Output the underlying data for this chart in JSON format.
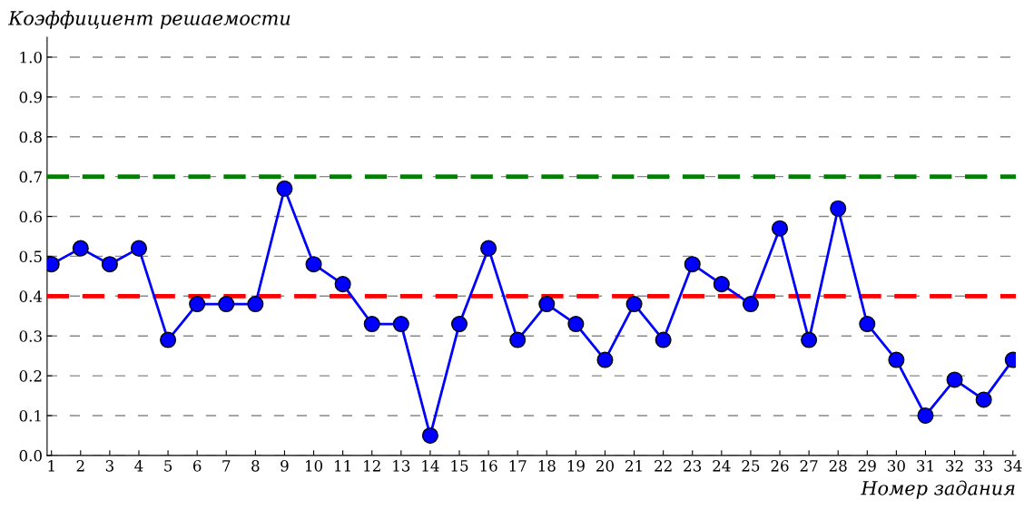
{
  "chart_data": {
    "type": "line",
    "xlabel": "Номер задания",
    "ylabel": "Коэффициент решаемости",
    "x": [
      1,
      2,
      3,
      4,
      5,
      6,
      7,
      8,
      9,
      10,
      11,
      12,
      13,
      14,
      15,
      16,
      17,
      18,
      19,
      20,
      21,
      22,
      23,
      24,
      25,
      26,
      27,
      28,
      29,
      30,
      31,
      32,
      33,
      34
    ],
    "series": [
      {
        "color": "#0000ff",
        "values": [
          0.48,
          0.52,
          0.48,
          0.52,
          0.29,
          0.38,
          0.38,
          0.38,
          0.67,
          0.48,
          0.43,
          0.33,
          0.33,
          0.05,
          0.33,
          0.52,
          0.29,
          0.38,
          0.33,
          0.24,
          0.38,
          0.29,
          0.48,
          0.43,
          0.38,
          0.57,
          0.29,
          0.62,
          0.33,
          0.24,
          0.1,
          0.19,
          0.14,
          0.24
        ]
      }
    ],
    "marker": "circle",
    "line_style": "solid",
    "xlim": [
      0.85,
      34.1
    ],
    "xticks": [
      1,
      2,
      3,
      4,
      5,
      6,
      7,
      8,
      9,
      10,
      11,
      12,
      13,
      14,
      15,
      16,
      17,
      18,
      19,
      20,
      21,
      22,
      23,
      24,
      25,
      26,
      27,
      28,
      29,
      30,
      31,
      32,
      33,
      34
    ],
    "ylim": [
      0,
      1.05
    ],
    "yticks": [
      {
        "value": 0,
        "label": "0.0"
      },
      {
        "value": 0.1,
        "label": "0.1"
      },
      {
        "value": 0.2,
        "label": "0.2"
      },
      {
        "value": 0.3,
        "label": "0.3"
      },
      {
        "value": 0.4,
        "label": "0.4"
      },
      {
        "value": 0.5,
        "label": "0.5"
      },
      {
        "value": 0.6,
        "label": "0.6"
      },
      {
        "value": 0.7,
        "label": "0.7"
      },
      {
        "value": 0.8,
        "label": "0.8"
      },
      {
        "value": 0.9,
        "label": "0.9"
      },
      {
        "value": 1.0,
        "label": "1.0"
      }
    ],
    "grid": "y",
    "ref_lines": [
      {
        "axis": "y",
        "value": 0.7,
        "color": "#008000",
        "line_style": "dashed"
      },
      {
        "axis": "y",
        "value": 0.4,
        "color": "#ff0000",
        "line_style": "dashed"
      }
    ],
    "legend": false
  }
}
